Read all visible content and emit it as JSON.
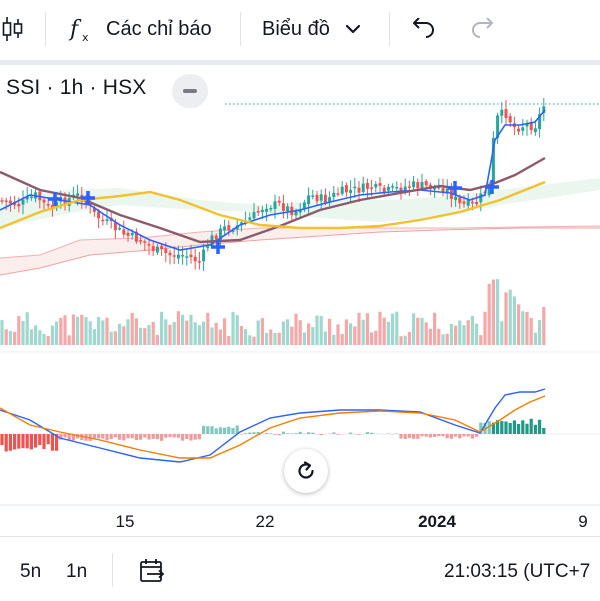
{
  "toolbar": {
    "indicators_label": "Các chỉ báo",
    "chart_type_label": "Biểu đồ",
    "icons": [
      "candles-icon",
      "function-icon",
      "chevron-down-icon",
      "undo-icon",
      "redo-icon"
    ]
  },
  "legend": {
    "symbol_line": "SSI · 1h · HSX"
  },
  "x_axis": {
    "labels": [
      "15",
      "22",
      "2024",
      "9"
    ]
  },
  "bottom_bar": {
    "range_5y": "5n",
    "range_1y": "1n",
    "time": "21:03:15 (UTC+7"
  },
  "colors": {
    "up": "#26a69a",
    "down": "#ef5350",
    "ma_fast": "#2962ff",
    "ma_slow": "#8d5a6b",
    "ma_long": "#f2c12e",
    "cloud_up": "#e8f5ec",
    "cloud_down": "#fbe3e3"
  }
}
